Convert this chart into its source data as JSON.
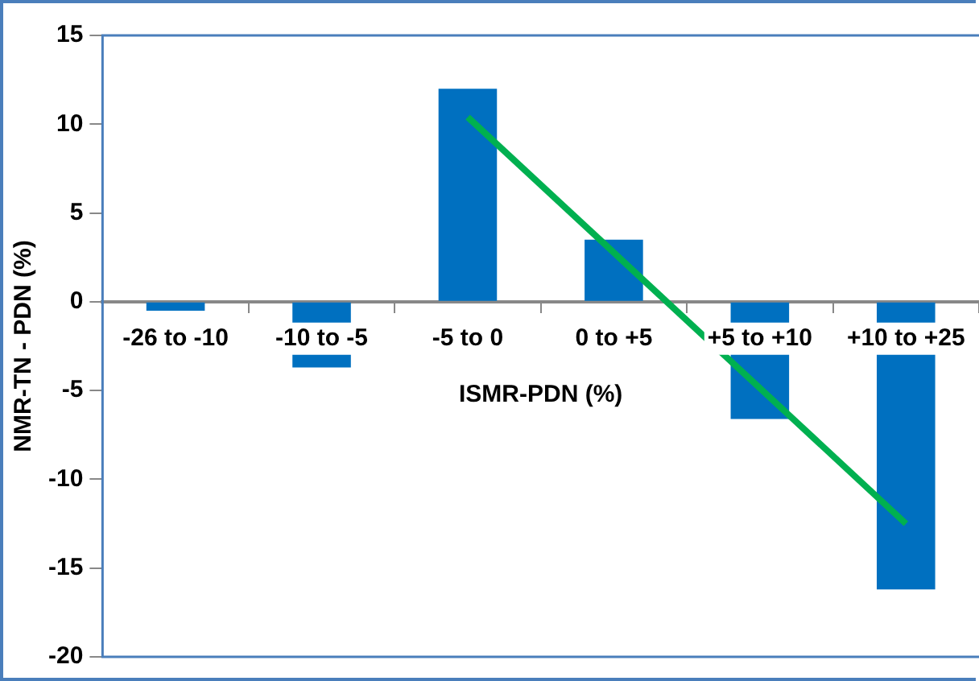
{
  "chart_data": {
    "type": "bar",
    "xlabel": "ISMR-PDN (%)",
    "ylabel": "NMR-TN - PDN (%)",
    "categories": [
      "-26 to -10",
      "-10 to -5",
      "-5 to 0",
      "0 to +5",
      "+5 to +10",
      "+10 to +25"
    ],
    "series": [
      {
        "color": "#0070c0",
        "values": [
          -0.5,
          -3.7,
          12.0,
          3.5,
          -6.6,
          -16.2
        ]
      },
      {
        "type": "line",
        "color": "#00b050",
        "x": [
          "-5 to 0",
          "+10 to +25"
        ],
        "values": [
          10.4,
          -12.5
        ]
      }
    ],
    "ylim": [
      -20,
      15
    ],
    "yticks": [
      -20,
      -15,
      -10,
      -5,
      0,
      5,
      10,
      15
    ],
    "grid": false,
    "legend": false,
    "marker": "none"
  }
}
